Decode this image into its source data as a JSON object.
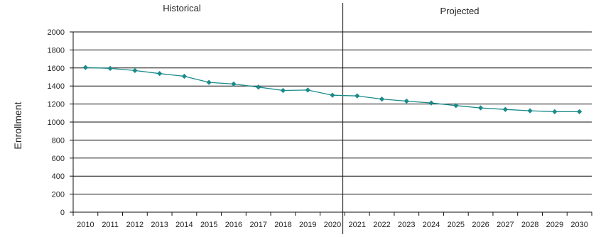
{
  "chart_data": {
    "type": "line",
    "title": "",
    "ylabel": "Enrollment",
    "xlabel": "",
    "ylim": [
      0,
      2000
    ],
    "ytick_step": 200,
    "grid": "horizontal",
    "legend": "none",
    "section_labels": [
      "Historical",
      "Projected"
    ],
    "divider_at": "2020",
    "series": [
      {
        "color": "#1a8a8a",
        "x": [
          "2010",
          "2011",
          "2012",
          "2013",
          "2014",
          "2015",
          "2016",
          "2017",
          "2018",
          "2019",
          "2020",
          "2021",
          "2022",
          "2023",
          "2024",
          "2025",
          "2026",
          "2027",
          "2028",
          "2029",
          "2030"
        ],
        "values": [
          1605,
          1595,
          1572,
          1538,
          1508,
          1440,
          1422,
          1388,
          1350,
          1355,
          1298,
          1290,
          1255,
          1232,
          1212,
          1183,
          1157,
          1140,
          1125,
          1115,
          1115
        ]
      }
    ]
  }
}
